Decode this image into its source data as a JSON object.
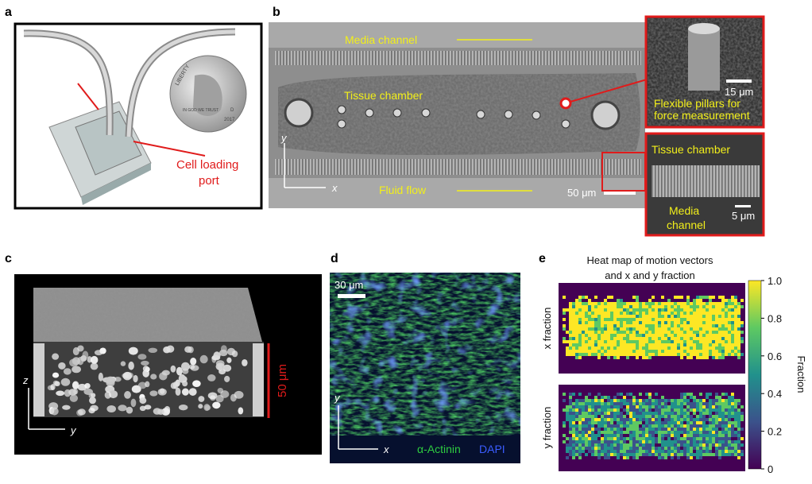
{
  "panels": {
    "a": {
      "label": "a",
      "annotation": [
        "Cell loading",
        "port"
      ],
      "coin": {
        "motto": "LIBERTY",
        "legend": "IN GOD WE TRUST",
        "year": "2017",
        "mint": "D"
      }
    },
    "b": {
      "label": "b",
      "media_channel": "Media channel",
      "tissue_chamber": "Tissue chamber",
      "fluid_flow": "Fluid flow",
      "scale_bar": "50 μm",
      "axis_y": "y",
      "axis_x": "x",
      "inset_top": {
        "scale_bar": "15 μm",
        "caption": [
          "Flexible pillars for",
          "force measurement"
        ]
      },
      "inset_bottom": {
        "title": "Tissue chamber",
        "caption": [
          "Media",
          "channel"
        ],
        "scale_bar": "5 μm"
      }
    },
    "c": {
      "label": "c",
      "axis_z": "z",
      "axis_y": "y",
      "scale_bar": "50 μm"
    },
    "d": {
      "label": "d",
      "scale_bar": "30 μm",
      "axis_y": "y",
      "axis_x": "x",
      "legend": [
        "α-Actinin",
        "DAPI"
      ]
    },
    "e": {
      "label": "e",
      "title": [
        "Heat map of motion vectors",
        "and x and y fraction"
      ],
      "rows": [
        "x fraction",
        "y fraction"
      ],
      "colorbar": {
        "label": "Fraction",
        "lim": [
          0,
          1
        ],
        "ticks": [
          0,
          {
            "value": 0.2,
            "label": "0.2"
          },
          {
            "value": 0.4,
            "label": "0.4"
          },
          {
            "value": 0.6,
            "label": "0.6"
          },
          {
            "value": 0.8,
            "label": "0.8"
          },
          {
            "value": 1,
            "label": "1.0"
          }
        ]
      }
    }
  }
}
